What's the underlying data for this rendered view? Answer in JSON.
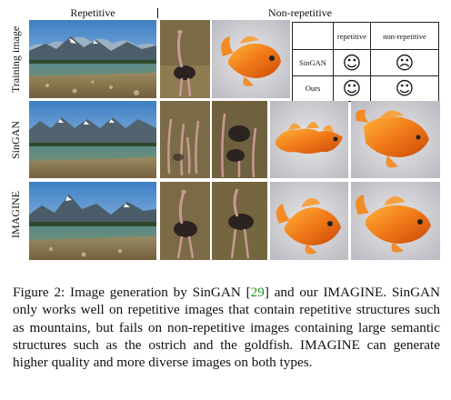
{
  "header": {
    "left": "Repetitive",
    "right": "Non-repetitive"
  },
  "row_labels": [
    "Training image",
    "SinGAN",
    "IMAGINE"
  ],
  "table": {
    "col1": "repetitive",
    "col2": "non-repetitive",
    "rows": [
      {
        "label": "SinGAN",
        "repetitive": "☺",
        "nonrepetitive": "☹"
      },
      {
        "label": "Ours",
        "repetitive": "☺",
        "nonrepetitive": "☺"
      }
    ]
  },
  "caption": {
    "prefix": "Figure 2: Image generation by SinGAN [",
    "ref": "29",
    "suffix": "] and our IMAGINE. SinGAN only works well on repetitive images that contain repetitive structures such as mountains, but fails on non-repetitive images containing large semantic structures such as the ostrich and the goldfish. IMAGINE can generate higher quality and more diverse images on both types."
  },
  "colors": {
    "citation": "#1a9c1a"
  }
}
